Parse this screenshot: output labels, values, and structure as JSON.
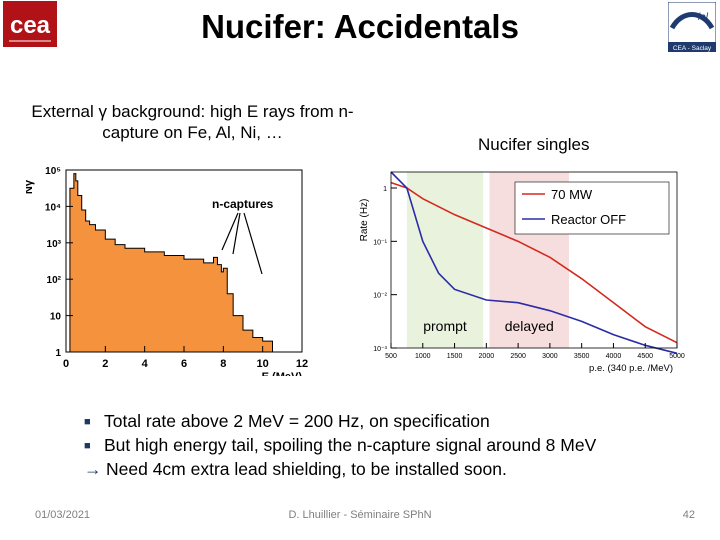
{
  "slide": {
    "title": "Nucifer: Accidentals",
    "logo_left_text": "cea",
    "logo_right_text": "lal",
    "logo_right_subtext": "CEA - Saclay",
    "gamma_background_text": "External γ background: high E rays from n-capture on Fe, Al, Ni, …",
    "singles_label": "Nucifer singles",
    "bullets": [
      "Total rate above 2 MeV = 200 Hz, on specification",
      "But high energy tail, spoiling the n-capture signal around 8 MeV"
    ],
    "conclusion": "Need 4cm extra lead shielding, to be installed soon.",
    "footer": {
      "date": "01/03/2021",
      "center": "D. Lhuillier - Séminaire SPhN",
      "page": "42"
    },
    "colors": {
      "bullet_marker": "#1f3864",
      "histogram_fill": "#f5923e",
      "logo_red": "#b01217",
      "prompt_band": "#e8f2dc",
      "delayed_band": "#f7dede",
      "series_on": "#d42a1e",
      "series_off": "#2b2ba8"
    }
  },
  "chart_data": [
    {
      "type": "area",
      "title": "",
      "xlabel": "E (MeV)",
      "ylabel": "Nγ",
      "xlim": [
        0,
        12
      ],
      "ylim_log10": [
        0,
        5
      ],
      "log_y": true,
      "x_ticks": [
        "0",
        "2",
        "4",
        "6",
        "8",
        "10",
        "12"
      ],
      "y_ticks": [
        "1",
        "10",
        "10²",
        "10³",
        "10⁴",
        "10⁵"
      ],
      "annotation": "n-captures",
      "x": [
        0.2,
        0.4,
        0.5,
        0.6,
        0.8,
        1.0,
        1.2,
        1.5,
        2.0,
        2.5,
        3.0,
        4.0,
        5.0,
        6.0,
        7.0,
        7.5,
        7.7,
        7.9,
        8.0,
        8.2,
        8.5,
        9.0,
        9.5,
        10.0,
        10.5
      ],
      "values_log10": [
        4.5,
        4.9,
        4.7,
        4.3,
        3.9,
        3.6,
        3.5,
        3.35,
        3.1,
        2.95,
        2.85,
        2.75,
        2.65,
        2.55,
        2.45,
        2.6,
        2.4,
        2.2,
        2.3,
        1.6,
        1.0,
        0.6,
        0.4,
        0.3,
        0.2
      ],
      "grid": false
    },
    {
      "type": "line",
      "title": "",
      "xlabel": "p.e. (340 p.e. /MeV)",
      "ylabel": "Rate (Hz)",
      "xlim": [
        500,
        5000
      ],
      "ylim_log10": [
        -3,
        0.3
      ],
      "log_y": true,
      "x_ticks": [
        "500",
        "1000",
        "1500",
        "2000",
        "2500",
        "3000",
        "3500",
        "4000",
        "4500",
        "5000"
      ],
      "y_ticks": [
        "1",
        "10⁻¹",
        "10⁻²",
        "10⁻³"
      ],
      "bands": [
        {
          "label": "prompt",
          "from": 750,
          "to": 1950
        },
        {
          "label": "delayed",
          "from": 2050,
          "to": 3300
        }
      ],
      "series": [
        {
          "name": "70 MW",
          "x": [
            500,
            750,
            1000,
            1500,
            2000,
            2500,
            3000,
            3500,
            4000,
            4500,
            5000
          ],
          "values_log10": [
            0.1,
            0.0,
            -0.2,
            -0.5,
            -0.75,
            -1.0,
            -1.3,
            -1.7,
            -2.15,
            -2.6,
            -2.9
          ]
        },
        {
          "name": "Reactor OFF",
          "x": [
            500,
            750,
            1000,
            1250,
            1500,
            2000,
            2500,
            3000,
            3500,
            4000,
            4500,
            5000
          ],
          "values_log10": [
            0.3,
            0.0,
            -1.0,
            -1.6,
            -1.9,
            -2.1,
            -2.15,
            -2.3,
            -2.5,
            -2.75,
            -2.95,
            -3.1
          ]
        }
      ],
      "legend": "top-right",
      "grid": false
    }
  ]
}
